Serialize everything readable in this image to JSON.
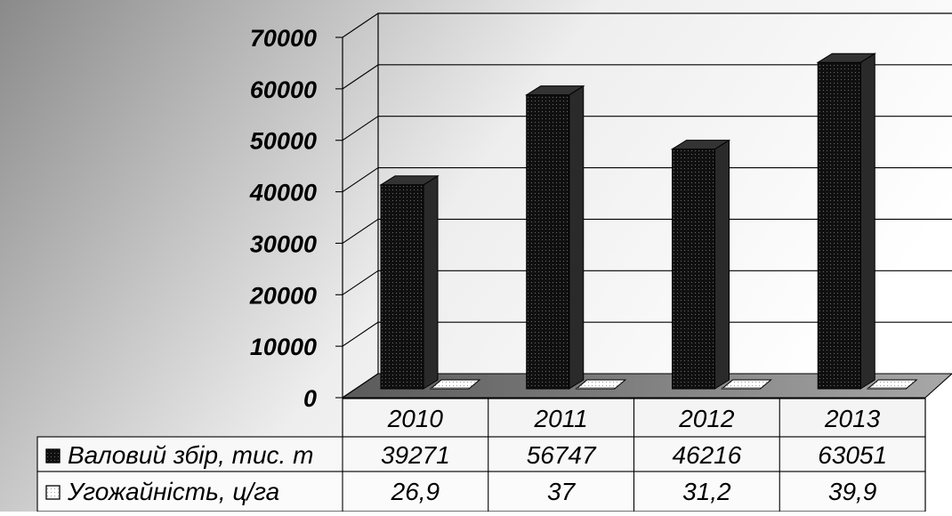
{
  "chart_data": {
    "type": "bar",
    "categories": [
      "2010",
      "2011",
      "2012",
      "2013"
    ],
    "series": [
      {
        "name": "Валовий збір, тис. т",
        "values": [
          39271,
          56747,
          46216,
          63051
        ],
        "color": "#111111"
      },
      {
        "name": "Угожайність, ц/га",
        "values": [
          26.9,
          37,
          31.2,
          39.9
        ],
        "color": "#ffffff"
      }
    ],
    "table": {
      "header": [
        "2010",
        "2011",
        "2012",
        "2013"
      ],
      "rows": [
        {
          "label": "Валовий збір, тис. т",
          "cells": [
            "39271",
            "56747",
            "46216",
            "63051"
          ],
          "marker": "filled-square"
        },
        {
          "label": "Угожайність, ц/га",
          "cells": [
            "26,9",
            "37",
            "31,2",
            "39,9"
          ],
          "marker": "empty-square"
        }
      ]
    },
    "yticks": [
      "0",
      "10000",
      "20000",
      "30000",
      "40000",
      "50000",
      "60000",
      "70000"
    ],
    "ylim": [
      0,
      70000
    ],
    "title": "",
    "xlabel": "",
    "ylabel": "",
    "grid": true,
    "style": "3d-column with data table",
    "background": "gray-to-white gradient"
  }
}
